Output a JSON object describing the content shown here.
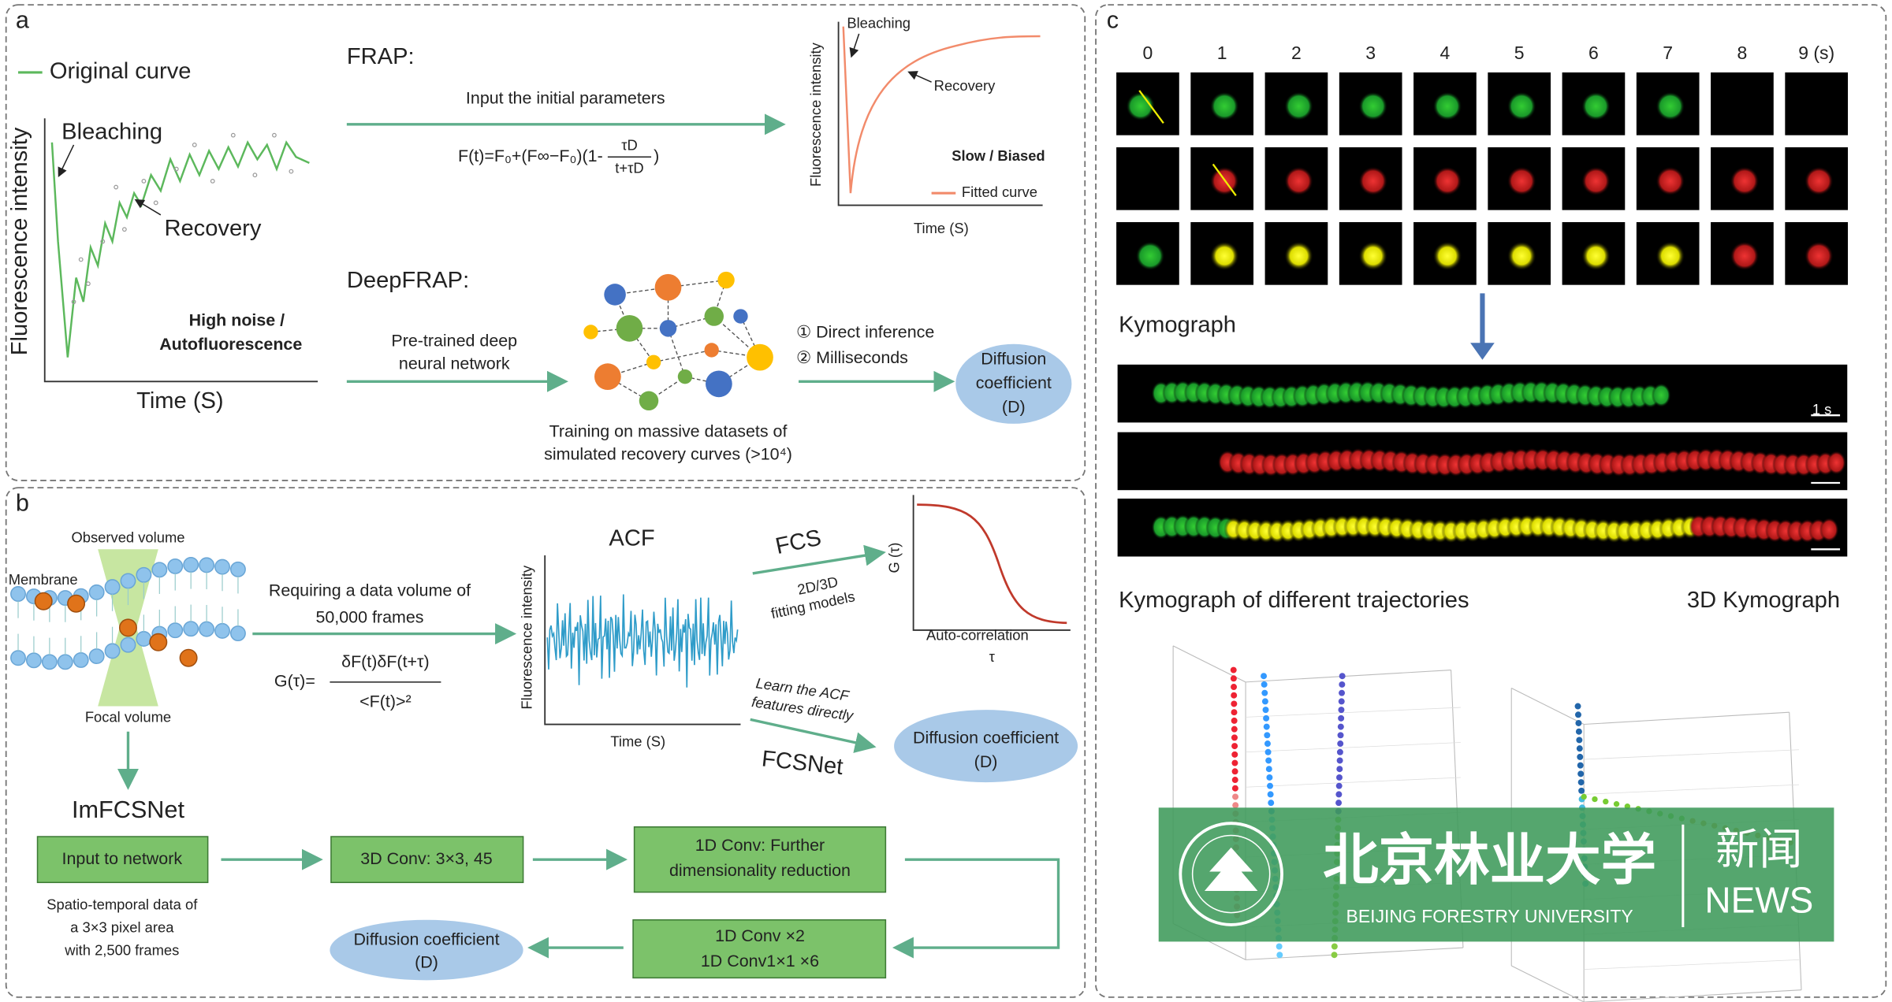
{
  "panel_a": {
    "label": "a",
    "legend": "Original curve",
    "bleaching": "Bleaching",
    "recovery": "Recovery",
    "noise_lines": [
      "High noise /",
      "Autofluorescence"
    ],
    "y_axis": "Fluorescence intensity",
    "x_axis": "Time (S)",
    "frap": {
      "title": "FRAP:",
      "instruction": "Input the initial parameters",
      "formula_left": "F(t)=F₀+(F∞−F₀)(1-",
      "formula_num": "τD",
      "formula_den": "t+τD",
      "formula_right": ")",
      "plot_bleaching": "Bleaching",
      "plot_recovery": "Recovery",
      "verdict": "Slow / Biased",
      "legend": "Fitted curve",
      "y_axis": "Fluorescence intensity",
      "x_axis": "Time (S)"
    },
    "deepfrap": {
      "title": "DeepFRAP:",
      "network_lines": [
        "Pre-trained deep",
        "neural network"
      ],
      "steps": [
        "① Direct inference",
        "② Milliseconds"
      ],
      "output_lines": [
        "Diffusion",
        "coefficient",
        "(D)"
      ],
      "training_lines": [
        "Training on massive datasets of",
        "simulated recovery curves (>10⁴)"
      ]
    }
  },
  "panel_b": {
    "label": "b",
    "observed": "Observed volume",
    "membrane": "Membrane",
    "focal": "Focal volume",
    "requirement_lines": [
      "Requiring a data volume of",
      "50,000 frames"
    ],
    "g_left": "G(τ)=",
    "g_num": "δF(t)δF(t+τ)",
    "g_den": "<F(t)>²",
    "acf": {
      "title": "ACF",
      "y_axis": "Fluorescence intensity",
      "x_axis": "Time (S)"
    },
    "fcs": "FCS",
    "fcs_models_lines": [
      "2D/3D",
      "fitting models"
    ],
    "g_axis": "G (τ)",
    "autocorr": "Auto-correlation",
    "tau": "τ",
    "learn_lines": [
      "Learn the ACF",
      "features directly"
    ],
    "fcsnet": "FCSNet",
    "fcsnet_output_lines": [
      "Diffusion coefficient",
      "(D)"
    ],
    "imfcsnet": {
      "title": "ImFCSNet",
      "input": "Input to network",
      "input_note_lines": [
        "Spatio-temporal data of",
        "a 3×3 pixel area",
        "with 2,500 frames"
      ],
      "conv3d": "3D Conv: 3×3, 45",
      "conv1d_lines": [
        "1D Conv: Further",
        "dimensionality reduction"
      ],
      "conv_more_lines": [
        "1D Conv ×2",
        "1D Conv1×1 ×6"
      ],
      "output_lines": [
        "Diffusion coefficient",
        "(D)"
      ]
    }
  },
  "panel_c": {
    "label": "c",
    "times": [
      "0",
      "1",
      "2",
      "3",
      "4",
      "5",
      "6",
      "7",
      "8",
      "9 (s)"
    ],
    "kymograph": "Kymograph",
    "scale": "1 s",
    "trajectories": "Kymograph of different trajectories",
    "kymo3d": "3D Kymograph"
  },
  "watermark": {
    "name": "北京林业大学",
    "news_cn": "新闻",
    "news_en": "NEWS",
    "university": "BEIJING FORESTRY UNIVERSITY"
  }
}
